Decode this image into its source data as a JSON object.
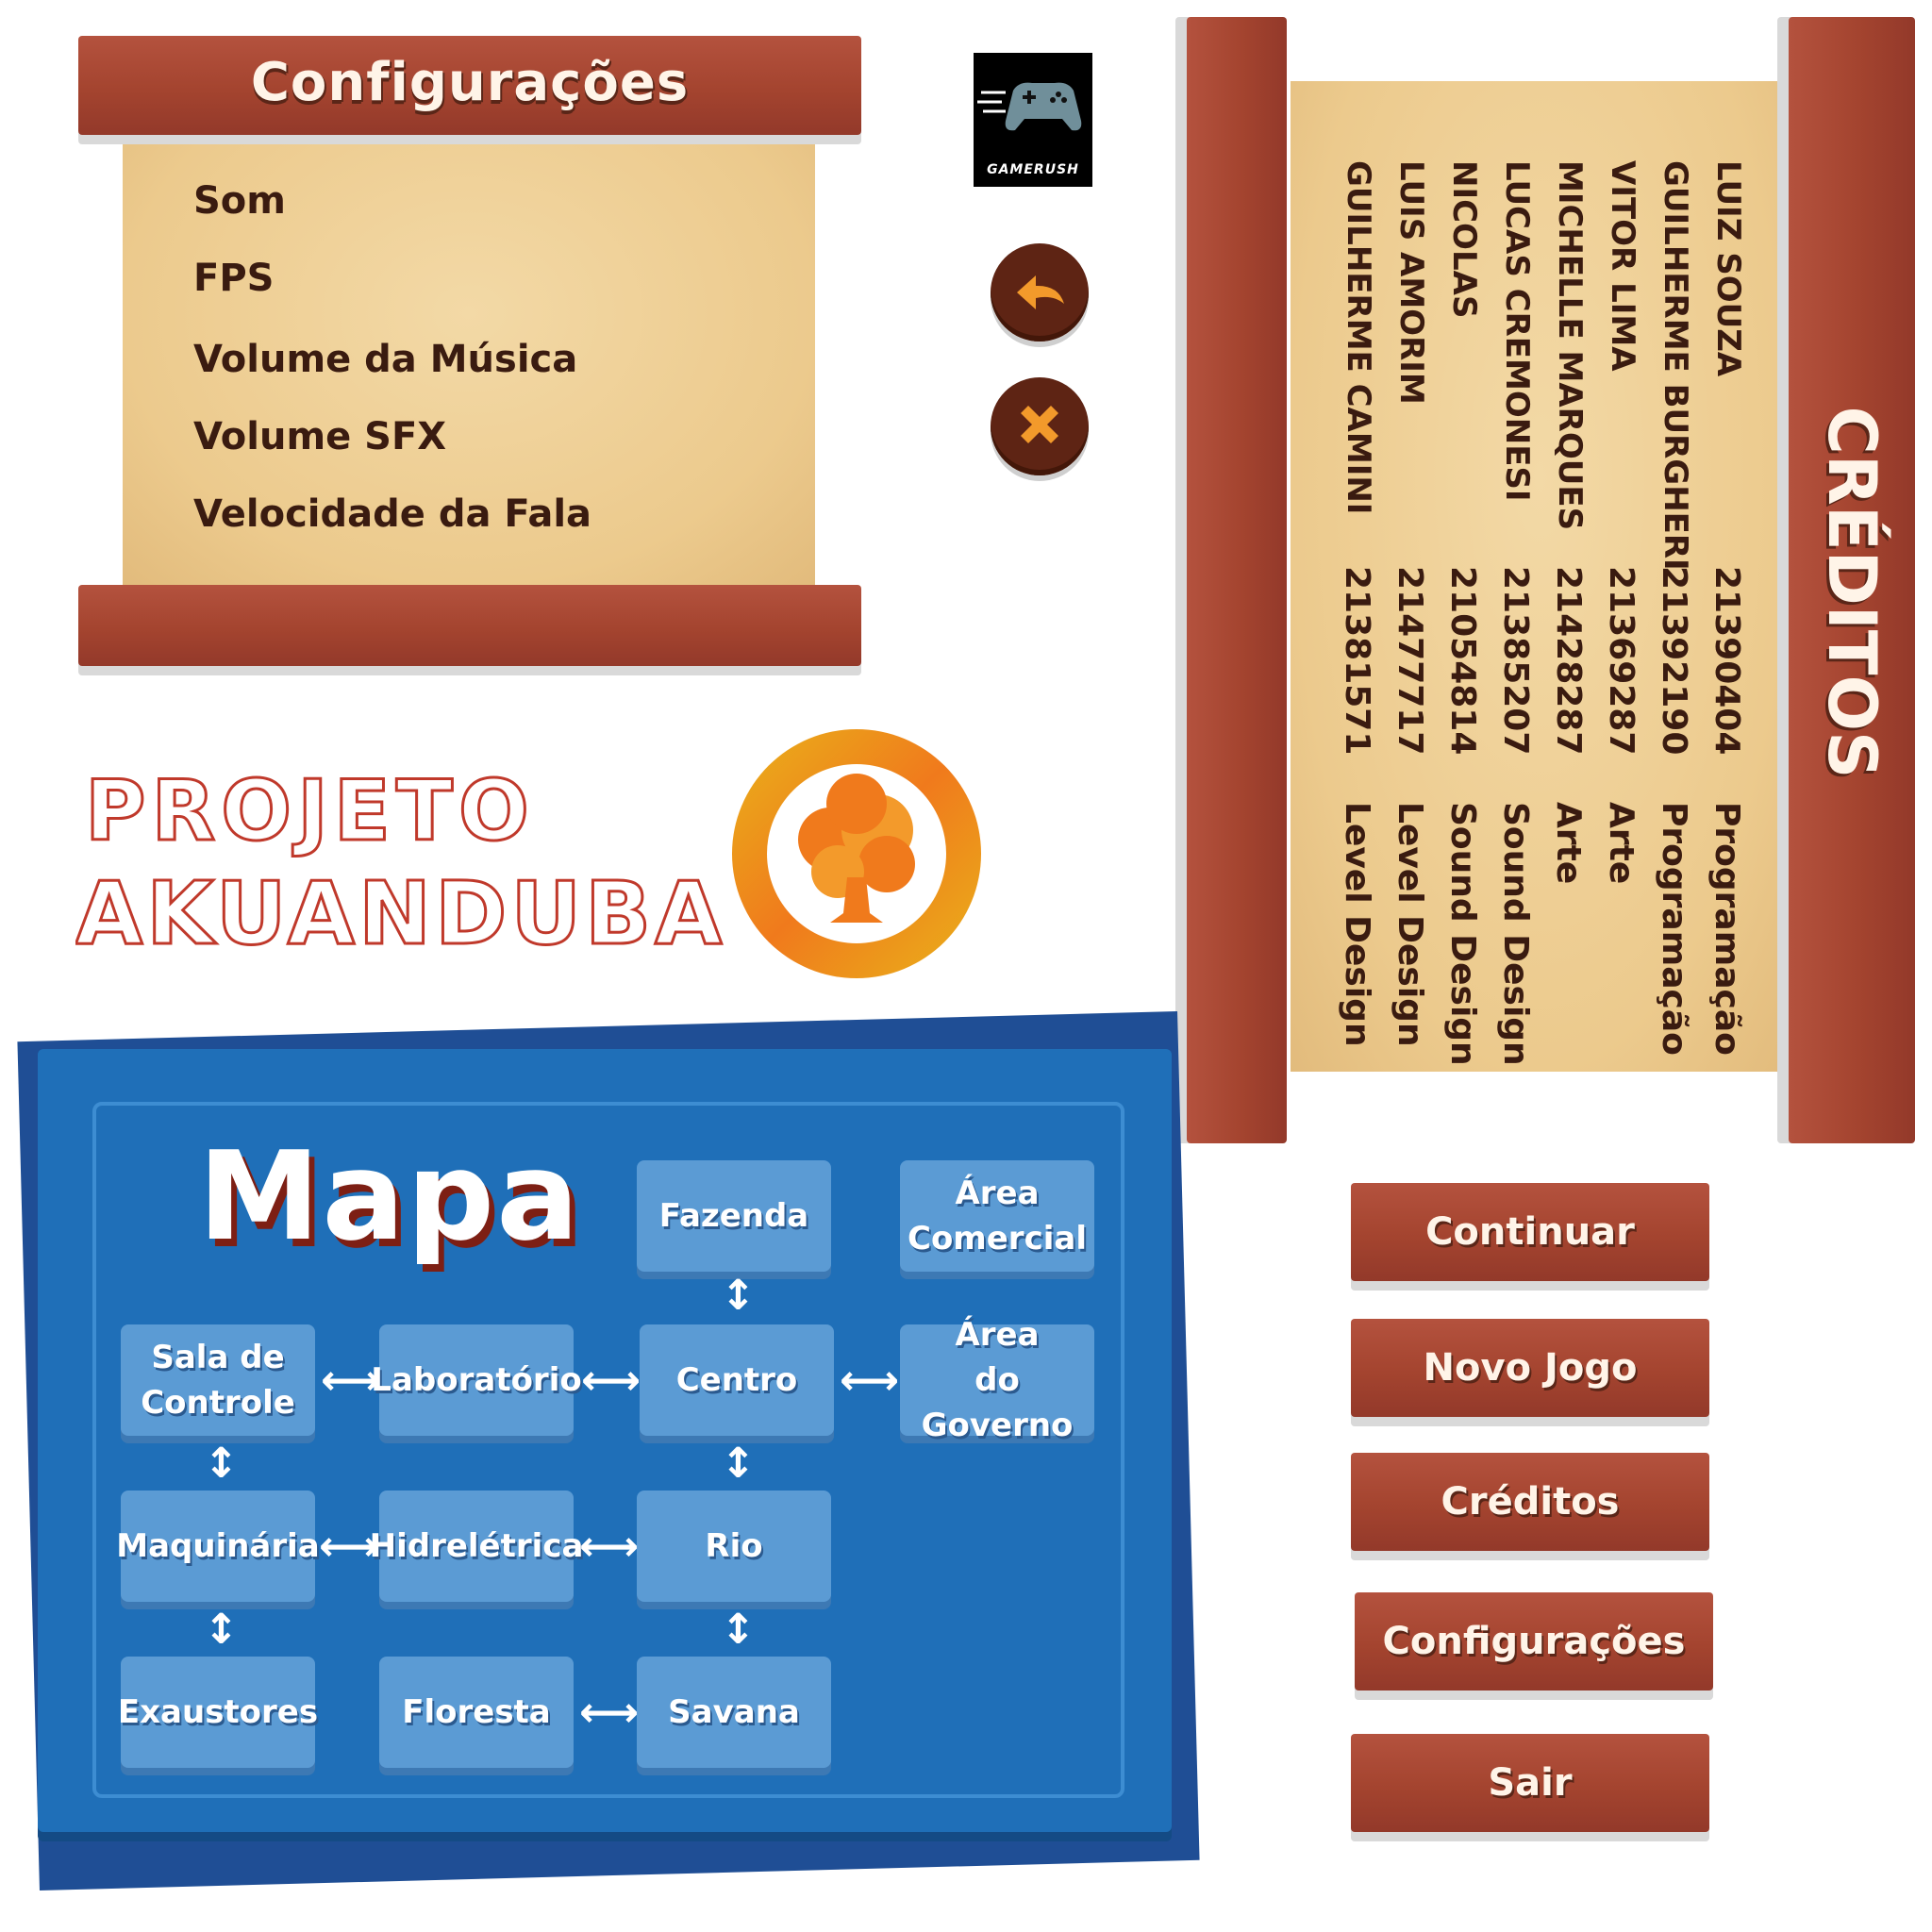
{
  "settings": {
    "title": "Configurações",
    "items": [
      "Som",
      "FPS",
      "Volume da Música",
      "Volume SFX",
      "Velocidade da Fala"
    ]
  },
  "brand": {
    "name": "GAMERUSH",
    "icon": "gamepad-icon"
  },
  "controls": {
    "back_icon": "back-arrow-icon",
    "close_icon": "close-icon"
  },
  "credits": {
    "title": "CRÉDITOS",
    "names": [
      "LUIZ SOUZA",
      "GUILHERME BURGHERI",
      "VITOR LIMA",
      "MICHELLE MARQUES",
      "LUCAS CREMONESI",
      "NICOLAS",
      "LUIS AMORIM",
      "GUILHERME CAMINI"
    ],
    "ids": [
      "21390404",
      "21392190",
      "21369287",
      "21428287",
      "21385207",
      "21054814",
      "21477717",
      "21381571"
    ],
    "roles": [
      "Programação",
      "Programação",
      "Arte",
      "Arte",
      "Sound Design",
      "Sound Design",
      "Level Design",
      "Level Design"
    ]
  },
  "logo": {
    "line1": "PROJETO",
    "line2": "AKUANDUBA",
    "emblem_icon": "tree-icon"
  },
  "map": {
    "title": "Mapa",
    "nodes": {
      "fazenda": "Fazenda",
      "area_comercial_1": "Área",
      "area_comercial_2": "Comercial",
      "sala_1": "Sala de",
      "sala_2": "Controle",
      "laboratorio": "Laboratório",
      "centro": "Centro",
      "governo_1": "Área",
      "governo_2": "do Governo",
      "maquinaria": "Maquinária",
      "hidreletrica": "Hidrelétrica",
      "rio": "Rio",
      "exaustores": "Exaustores",
      "floresta": "Floresta",
      "savana": "Savana"
    },
    "arrow_h": "⟷",
    "arrow_v": "↕"
  },
  "menu": {
    "continuar": "Continuar",
    "novo_jogo": "Novo Jogo",
    "creditos": "Créditos",
    "configuracoes": "Configurações",
    "sair": "Sair"
  },
  "colors": {
    "wood": "#a4442f",
    "parchment": "#ecca8d",
    "map_blue": "#1f6fb8",
    "node_blue": "#5b9bd4",
    "logo_red": "#c0392b",
    "logo_orange": "#f08a1c"
  }
}
